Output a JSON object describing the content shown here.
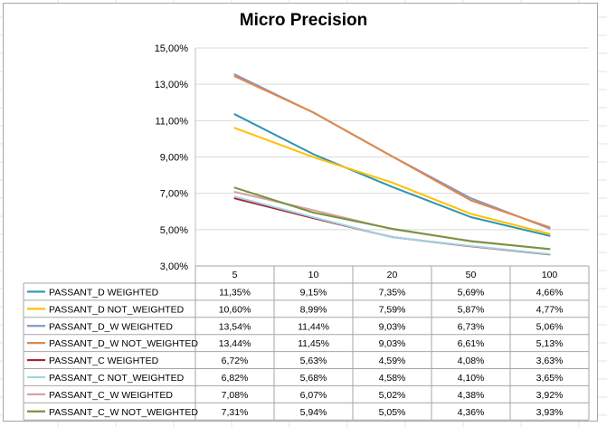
{
  "chart_data": {
    "type": "line",
    "title": "Micro Precision",
    "x": [
      "5",
      "10",
      "20",
      "50",
      "100"
    ],
    "ylim": [
      3,
      15
    ],
    "yticks": [
      "3,00%",
      "5,00%",
      "7,00%",
      "9,00%",
      "11,00%",
      "13,00%",
      "15,00%"
    ],
    "grid": true,
    "legend": "data-table-bottom",
    "series": [
      {
        "name": "PASSANT_D WEIGHTED",
        "color": "#2e93b3",
        "values": [
          11.35,
          9.15,
          7.35,
          5.69,
          4.66
        ],
        "labels": [
          "11,35%",
          "9,15%",
          "7,35%",
          "5,69%",
          "4,66%"
        ]
      },
      {
        "name": "PASSANT_D NOT_WEIGHTED",
        "color": "#ffc000",
        "values": [
          10.6,
          8.99,
          7.59,
          5.87,
          4.77
        ],
        "labels": [
          "10,60%",
          "8,99%",
          "7,59%",
          "5,87%",
          "4,77%"
        ]
      },
      {
        "name": "PASSANT_D_W WEIGHTED",
        "color": "#8497c2",
        "values": [
          13.54,
          11.44,
          9.03,
          6.73,
          5.06
        ],
        "labels": [
          "13,54%",
          "11,44%",
          "9,03%",
          "6,73%",
          "5,06%"
        ]
      },
      {
        "name": "PASSANT_D_W NOT_WEIGHTED",
        "color": "#e0884a",
        "values": [
          13.44,
          11.45,
          9.03,
          6.61,
          5.13
        ],
        "labels": [
          "13,44%",
          "11,45%",
          "9,03%",
          "6,61%",
          "5,13%"
        ]
      },
      {
        "name": "PASSANT_C WEIGHTED",
        "color": "#a8242e",
        "values": [
          6.72,
          5.63,
          4.59,
          4.08,
          3.63
        ],
        "labels": [
          "6,72%",
          "5,63%",
          "4,59%",
          "4,08%",
          "3,63%"
        ]
      },
      {
        "name": "PASSANT_C NOT_WEIGHTED",
        "color": "#9fd4e3",
        "values": [
          6.82,
          5.68,
          4.58,
          4.1,
          3.65
        ],
        "labels": [
          "6,82%",
          "5,68%",
          "4,58%",
          "4,10%",
          "3,65%"
        ]
      },
      {
        "name": "PASSANT_C_W WEIGHTED",
        "color": "#d9a0a5",
        "values": [
          7.08,
          6.07,
          5.02,
          4.38,
          3.92
        ],
        "labels": [
          "7,08%",
          "6,07%",
          "5,02%",
          "4,38%",
          "3,92%"
        ]
      },
      {
        "name": "PASSANT_C_W NOT_WEIGHTED",
        "color": "#77933c",
        "values": [
          7.31,
          5.94,
          5.05,
          4.36,
          3.93
        ],
        "labels": [
          "7,31%",
          "5,94%",
          "5,05%",
          "4,36%",
          "3,93%"
        ]
      }
    ]
  }
}
